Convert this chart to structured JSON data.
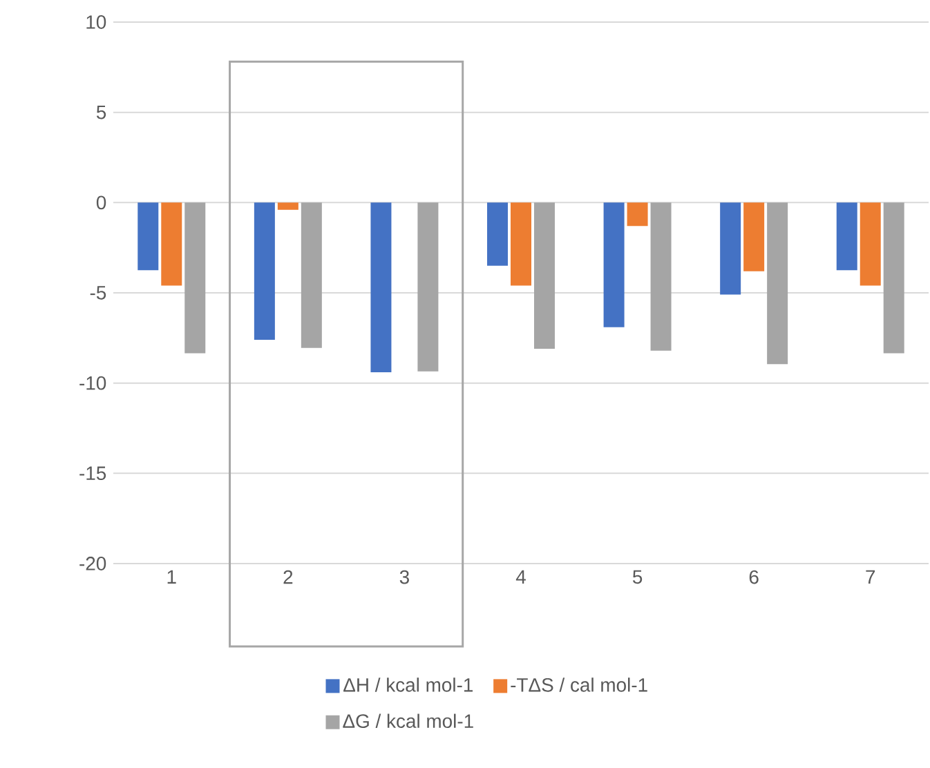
{
  "chart_data": {
    "type": "bar",
    "categories": [
      "1",
      "2",
      "3",
      "4",
      "5",
      "6",
      "7"
    ],
    "series": [
      {
        "name": "ΔH / kcal mol-1",
        "color": "#4472c4",
        "values": [
          -3.75,
          -7.6,
          -9.4,
          -3.5,
          -6.9,
          -5.1,
          -3.75
        ]
      },
      {
        "name": "-TΔS / cal mol-1",
        "color": "#ed7d31",
        "values": [
          -4.6,
          -0.4,
          null,
          -4.6,
          -1.3,
          -3.8,
          -4.6
        ]
      },
      {
        "name": "ΔG / kcal mol-1",
        "color": "#a5a5a5",
        "values": [
          -8.35,
          -8.05,
          -9.35,
          -8.1,
          -8.2,
          -8.95,
          -8.35
        ]
      }
    ],
    "ylim": [
      -20,
      10
    ],
    "yticks": [
      -20,
      -15,
      -10,
      -5,
      0,
      5,
      10
    ],
    "grid": "y",
    "legend": "bottom"
  }
}
